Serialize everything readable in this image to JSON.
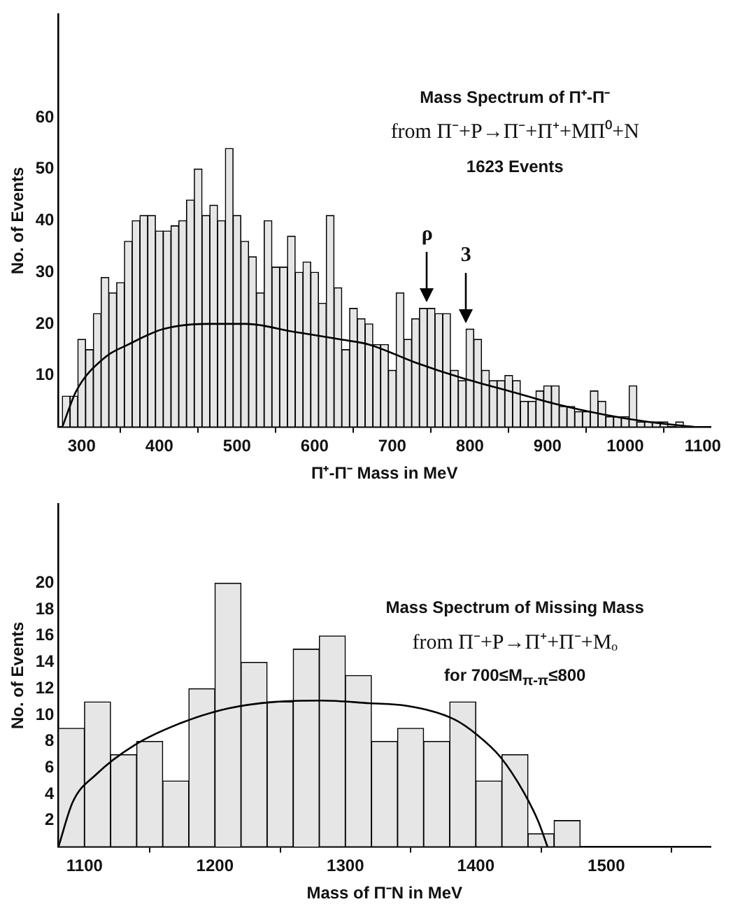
{
  "chart_data": [
    {
      "type": "histogram",
      "title": "Mass Spectrum of Π⁺-Π⁻",
      "subtitle": "from Π⁻+P→Π⁻+Π⁺+MΠ⁰+N",
      "xlabel": "Π⁺-Π⁻ Mass in MeV",
      "ylabel": "No. of Events",
      "annotations": [
        "1623 Events",
        {
          "text": "ρ",
          "x": 745,
          "y": 23
        },
        {
          "text": "3",
          "x": 795,
          "y": 19
        }
      ],
      "color": "#e6e6e6",
      "bins": [
        275,
        285,
        295,
        305,
        315,
        325,
        335,
        345,
        355,
        365,
        375,
        385,
        395,
        405,
        415,
        425,
        435,
        445,
        455,
        465,
        475,
        485,
        495,
        505,
        515,
        525,
        535,
        545,
        555,
        565,
        575,
        585,
        595,
        605,
        615,
        625,
        635,
        645,
        655,
        665,
        675,
        685,
        695,
        705,
        715,
        725,
        735,
        745,
        755,
        765,
        775,
        785,
        795,
        805,
        815,
        825,
        835,
        845,
        855,
        865,
        875,
        885,
        895,
        905,
        915,
        925,
        935,
        945,
        955,
        965,
        975,
        985,
        995,
        1005,
        1015,
        1025,
        1035,
        1045,
        1055,
        1065,
        1075
      ],
      "values": [
        6,
        6,
        17,
        15,
        22,
        29,
        26,
        28,
        36,
        40,
        41,
        41,
        38,
        38,
        39,
        40,
        44,
        50,
        41,
        43,
        40,
        54,
        41,
        36,
        33,
        26,
        40,
        31,
        31,
        37,
        30,
        32,
        30,
        24,
        41,
        27,
        15,
        23,
        21,
        20,
        16,
        16,
        11,
        26,
        17,
        21,
        23,
        23,
        22,
        22,
        11,
        9,
        19,
        17,
        11,
        9,
        9,
        10,
        9,
        5,
        5,
        7,
        8,
        8,
        4,
        4,
        3,
        3,
        7,
        5,
        2,
        2,
        2,
        8,
        1,
        1,
        1,
        1,
        0,
        1
      ],
      "series": [
        {
          "type": "line",
          "color": "#000000",
          "marker": "none",
          "x": [
            275,
            293,
            330,
            360,
            405,
            463,
            512,
            572,
            633,
            670,
            730,
            790,
            850,
            910,
            970,
            1030,
            1090
          ],
          "values": [
            0,
            7,
            13.5,
            16,
            19,
            20,
            20,
            18.5,
            17,
            16,
            12.5,
            9.5,
            7,
            4.5,
            2.5,
            1,
            0
          ]
        }
      ],
      "xlim": [
        270,
        1110
      ],
      "xticks": [
        300,
        400,
        500,
        600,
        700,
        800,
        900,
        1000,
        1100
      ],
      "ylim": [
        0,
        80
      ],
      "yticks": [
        {
          "value": 0,
          "label": null
        },
        10,
        20,
        30,
        40,
        50,
        60
      ],
      "grid": false,
      "legend": false
    },
    {
      "type": "histogram",
      "title": "Mass Spectrum of Missing Mass",
      "subtitle": "from Π⁻+P→Π⁺+Π⁻+Mₒ",
      "xlabel": "Mass of Π⁻N in MeV",
      "ylabel": "No. of Events",
      "annotations": [
        "for 700≤M$_{π-π}$≤800"
      ],
      "color": "#e6e6e6",
      "bins": [
        1080,
        1100,
        1120,
        1140,
        1160,
        1180,
        1200,
        1220,
        1240,
        1260,
        1280,
        1300,
        1320,
        1340,
        1360,
        1380,
        1400,
        1420,
        1440,
        1460,
        1480
      ],
      "values": [
        9,
        11,
        7,
        8,
        5,
        12,
        20,
        14,
        11,
        15,
        16,
        13,
        8,
        9,
        8,
        11,
        5,
        7,
        1,
        2
      ],
      "series": [
        {
          "type": "line",
          "color": "#000000",
          "marker": "none",
          "x": [
            1080,
            1091,
            1109,
            1138,
            1174,
            1210,
            1246,
            1282,
            1318,
            1347,
            1383,
            1401,
            1419,
            1437,
            1448,
            1455
          ],
          "values": [
            0,
            3.4,
            5.5,
            7.7,
            9.4,
            10.5,
            11,
            11.1,
            10.9,
            10.7,
            9.7,
            8.5,
            6.8,
            4.1,
            1.9,
            0
          ]
        }
      ],
      "xlim": [
        1080,
        1580
      ],
      "xticks": [
        1100,
        1200,
        1300,
        1400,
        1500
      ],
      "ylim": [
        0,
        26
      ],
      "yticks": [
        {
          "value": 0,
          "label": null
        },
        2,
        4,
        6,
        8,
        10,
        12,
        14,
        16,
        18,
        20
      ],
      "grid": false,
      "legend": false
    }
  ]
}
